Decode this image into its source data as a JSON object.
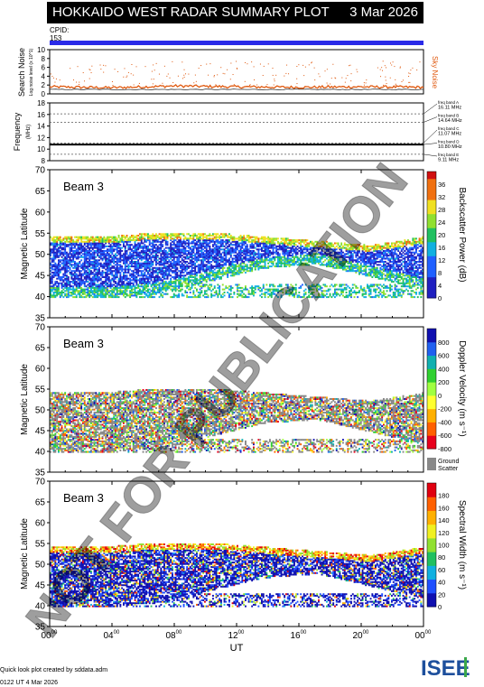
{
  "header": {
    "title": "HOKKAIDO WEST RADAR SUMMARY PLOT",
    "date": "3 Mar 2026"
  },
  "cpid": {
    "label": "CPID:",
    "value": "153"
  },
  "watermark": "NOT FOR PUBLICATION",
  "noise_panel": {
    "ylabel": "Search Noise",
    "sublabel": "Log noise level (x 10^1)",
    "yticks": [
      "0",
      "2",
      "4",
      "6",
      "8",
      "10"
    ],
    "legend": "Sky Noise",
    "legend_color": "#e05a10"
  },
  "freq_panel": {
    "ylabel": "Frequency",
    "unit": "(MHz)",
    "yticks": [
      "8",
      "10",
      "12",
      "14",
      "16",
      "18"
    ],
    "bands": [
      {
        "label": "freq band A",
        "value": "16.11 MHz",
        "mhz": 16.11
      },
      {
        "label": "freq band B",
        "value": "14.64 MHz",
        "mhz": 14.64
      },
      {
        "label": "freq band C",
        "value": "11.07 MHz",
        "mhz": 11.07
      },
      {
        "label": "freq band D",
        "value": "10.80 MHz",
        "mhz": 10.8
      },
      {
        "label": "freq band E",
        "value": "9.11 MHz",
        "mhz": 9.11
      }
    ]
  },
  "panels": [
    {
      "beam": "Beam  3",
      "ylabel": "Magnetic Latitude",
      "cbar_label": "Backscatter Power (dB)",
      "cbar_ticks": [
        "0",
        "4",
        "8",
        "12",
        "16",
        "20",
        "24",
        "28",
        "32",
        "36"
      ],
      "type": "power"
    },
    {
      "beam": "Beam  3",
      "ylabel": "Magnetic Latitude",
      "cbar_label": "Doppler Velocity (m s⁻¹)",
      "cbar_ticks": [
        "-800",
        "-600",
        "-400",
        "-200",
        "0",
        "200",
        "400",
        "600",
        "800"
      ],
      "type": "velocity",
      "ground_label": "Ground",
      "ground_label2": "Scatter"
    },
    {
      "beam": "Beam  3",
      "ylabel": "Magnetic Latitude",
      "cbar_label": "Spectral Width (m s⁻¹)",
      "cbar_ticks": [
        "0",
        "20",
        "40",
        "60",
        "80",
        "100",
        "120",
        "140",
        "160",
        "180"
      ],
      "type": "width"
    }
  ],
  "xaxis": {
    "ticks": [
      "00",
      "04",
      "08",
      "12",
      "16",
      "20",
      "00"
    ],
    "tick_sup": "00",
    "label": "UT"
  },
  "footer": {
    "line1": "Quick look plot created by sddata.adm",
    "line2": "0122 UT 4 Mar 2026"
  },
  "logo": {
    "text": "ISEE"
  },
  "chart_data": [
    {
      "type": "line",
      "title": "Search Noise",
      "ylim": [
        0,
        10
      ],
      "x": [
        0,
        4,
        8,
        12,
        16,
        20,
        24
      ],
      "series": [
        {
          "name": "Sky Noise",
          "values": [
            1.6,
            1.4,
            1.8,
            1.6,
            1.5,
            1.6,
            1.5
          ]
        }
      ]
    },
    {
      "type": "scatter",
      "title": "Frequency",
      "ylim": [
        8,
        18
      ],
      "series": [
        {
          "name": "Transmit frequency",
          "values": [
            10.8,
            10.8,
            10.8,
            10.8,
            10.8,
            10.8,
            10.8
          ]
        }
      ]
    },
    {
      "type": "heatmap",
      "ylim": [
        35,
        70
      ],
      "xlim": [
        0,
        24
      ],
      "zlim": [
        0,
        36
      ],
      "band_top": [
        54,
        54,
        55,
        55,
        54,
        53,
        52,
        54
      ],
      "band_bottom": [
        40,
        40,
        41,
        44,
        47,
        48,
        45,
        42
      ]
    },
    {
      "type": "heatmap",
      "ylim": [
        35,
        70
      ],
      "xlim": [
        0,
        24
      ],
      "zlim": [
        -800,
        800
      ],
      "band_top": [
        54,
        54,
        55,
        55,
        54,
        53,
        52,
        54
      ],
      "band_bottom": [
        40,
        40,
        41,
        44,
        47,
        48,
        45,
        42
      ]
    },
    {
      "type": "heatmap",
      "ylim": [
        35,
        70
      ],
      "xlim": [
        0,
        24
      ],
      "zlim": [
        0,
        180
      ],
      "band_top": [
        54,
        54,
        55,
        55,
        54,
        53,
        52,
        54
      ],
      "band_bottom": [
        40,
        40,
        41,
        44,
        47,
        48,
        45,
        42
      ]
    }
  ]
}
